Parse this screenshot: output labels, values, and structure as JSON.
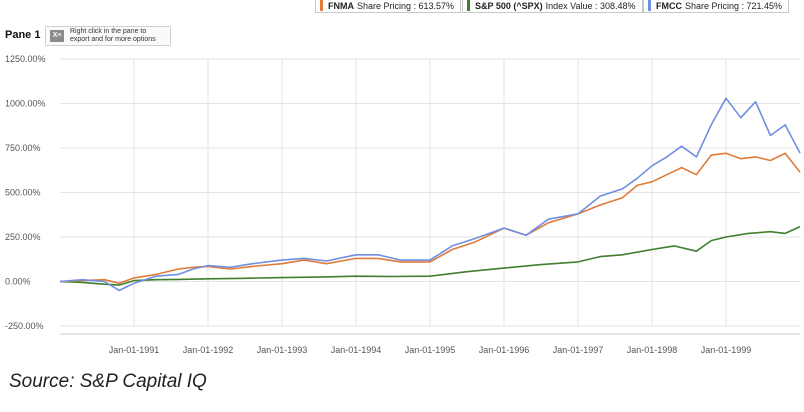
{
  "legend": [
    {
      "name": "FNMA",
      "label": "Share Pricing : 613.57%",
      "color": "#e07b39"
    },
    {
      "name": "S&P 500 (^SPX)",
      "label": "Index Value : 308.48%",
      "color": "#3f7f2f"
    },
    {
      "name": "FMCC",
      "label": "Share Pricing : 721.45%",
      "color": "#6f8fe0"
    }
  ],
  "pane": {
    "title": "Pane 1",
    "export_icon": "excel-export-icon",
    "export_text_1": "Right click in the pane to",
    "export_text_2": "export and for more options"
  },
  "source": "Source: S&P Capital IQ",
  "chart_data": {
    "type": "line",
    "y_tick_labels": [
      "1250.00%",
      "1000.00%",
      "750.00%",
      "500.00%",
      "250.00%",
      "0.00%",
      "-250.00%"
    ],
    "y_ticks": [
      1250,
      1000,
      750,
      500,
      250,
      0,
      -250
    ],
    "ylim": [
      -250,
      1250
    ],
    "x_tick_labels": [
      "Jan-01-1991",
      "Jan-01-1992",
      "Jan-01-1993",
      "Jan-01-1994",
      "Jan-01-1995",
      "Jan-01-1996",
      "Jan-01-1997",
      "Jan-01-1998",
      "Jan-01-1999"
    ],
    "x_ticks": [
      1991,
      1992,
      1993,
      1994,
      1995,
      1996,
      1997,
      1998,
      1999
    ],
    "xlim": [
      1990.0,
      2000.0
    ],
    "grid": true,
    "legend_position": "top",
    "series": [
      {
        "name": "FNMA",
        "color": "#e07b39",
        "x": [
          1990.0,
          1990.3,
          1990.6,
          1990.8,
          1991.0,
          1991.3,
          1991.6,
          1991.8,
          1992.0,
          1992.3,
          1992.6,
          1993.0,
          1993.3,
          1993.6,
          1994.0,
          1994.3,
          1994.6,
          1995.0,
          1995.3,
          1995.6,
          1996.0,
          1996.3,
          1996.6,
          1997.0,
          1997.3,
          1997.6,
          1997.8,
          1998.0,
          1998.2,
          1998.4,
          1998.6,
          1998.8,
          1999.0,
          1999.2,
          1999.4,
          1999.6,
          1999.8,
          2000.0
        ],
        "y": [
          0,
          5,
          10,
          -10,
          20,
          40,
          70,
          80,
          85,
          70,
          85,
          100,
          120,
          100,
          130,
          130,
          110,
          110,
          180,
          220,
          300,
          260,
          330,
          380,
          430,
          470,
          540,
          560,
          600,
          640,
          600,
          710,
          720,
          690,
          700,
          680,
          720,
          613.57
        ]
      },
      {
        "name": "S&P 500 (^SPX)",
        "color": "#3f7f2f",
        "x": [
          1990.0,
          1990.3,
          1990.6,
          1990.8,
          1991.0,
          1991.3,
          1991.6,
          1992.0,
          1992.5,
          1993.0,
          1993.5,
          1994.0,
          1994.5,
          1995.0,
          1995.5,
          1996.0,
          1996.5,
          1997.0,
          1997.3,
          1997.6,
          1998.0,
          1998.3,
          1998.6,
          1998.8,
          1999.0,
          1999.3,
          1999.6,
          1999.8,
          2000.0
        ],
        "y": [
          0,
          -5,
          -15,
          -20,
          5,
          10,
          12,
          15,
          18,
          22,
          25,
          30,
          28,
          30,
          55,
          75,
          95,
          110,
          140,
          150,
          180,
          200,
          170,
          230,
          250,
          270,
          280,
          270,
          308.48
        ]
      },
      {
        "name": "FMCC",
        "color": "#6f8fe0",
        "x": [
          1990.0,
          1990.3,
          1990.6,
          1990.8,
          1991.0,
          1991.3,
          1991.6,
          1991.8,
          1992.0,
          1992.3,
          1992.6,
          1993.0,
          1993.3,
          1993.6,
          1994.0,
          1994.3,
          1994.6,
          1995.0,
          1995.3,
          1995.6,
          1996.0,
          1996.3,
          1996.6,
          1997.0,
          1997.3,
          1997.6,
          1997.8,
          1998.0,
          1998.2,
          1998.4,
          1998.6,
          1998.8,
          1999.0,
          1999.2,
          1999.4,
          1999.6,
          1999.8,
          2000.0
        ],
        "y": [
          0,
          10,
          0,
          -50,
          -10,
          30,
          40,
          70,
          90,
          80,
          100,
          120,
          130,
          115,
          150,
          150,
          120,
          120,
          200,
          240,
          300,
          260,
          350,
          380,
          480,
          520,
          580,
          650,
          700,
          760,
          700,
          880,
          1030,
          920,
          1010,
          820,
          880,
          721.45
        ]
      }
    ]
  }
}
